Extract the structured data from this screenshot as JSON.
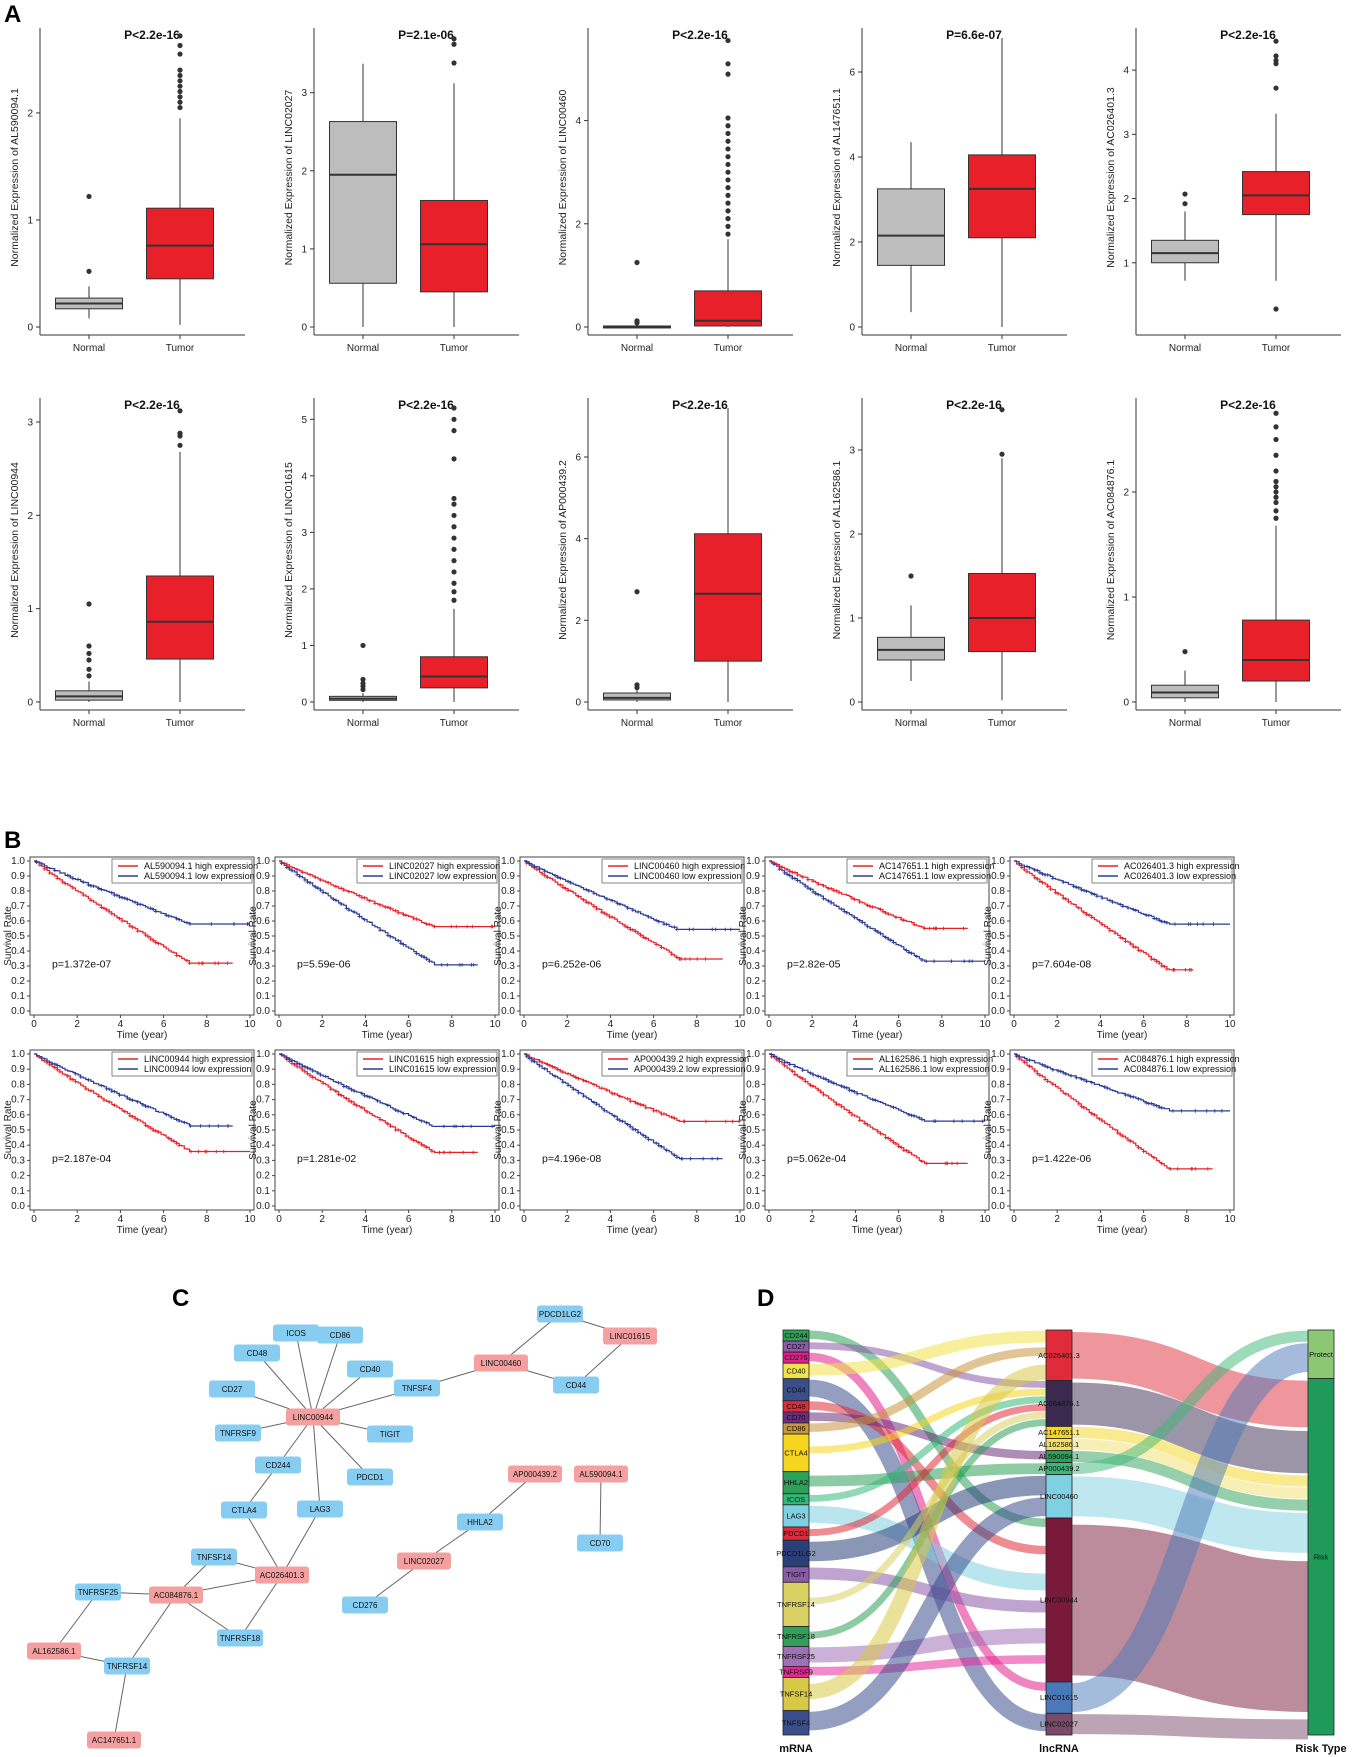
{
  "panels": {
    "A": "A",
    "B": "B",
    "C": "C",
    "D": "D"
  },
  "boxplots": {
    "groups": [
      "Normal",
      "Tumor"
    ],
    "ylabel_prefix": "Normalized Expression of ",
    "colors": {
      "normal": "#bdbdbd",
      "tumor": "#e8202a"
    },
    "plots": [
      {
        "gene": "AL590094.1",
        "p": "P<2.2e-16",
        "ymax": 2.7,
        "ticks": [
          0,
          1,
          2
        ],
        "normal": {
          "min": 0.08,
          "q1": 0.17,
          "med": 0.22,
          "q3": 0.27,
          "max": 0.38,
          "out": [
            0.52,
            1.22
          ]
        },
        "tumor": {
          "min": 0.02,
          "q1": 0.45,
          "med": 0.76,
          "q3": 1.11,
          "max": 1.95,
          "out": [
            2.05,
            2.1,
            2.15,
            2.2,
            2.25,
            2.3,
            2.35,
            2.4,
            2.55,
            2.63,
            2.72
          ]
        }
      },
      {
        "gene": "LINC02027",
        "p": "P=2.1e-06",
        "ymax": 3.7,
        "ticks": [
          0,
          1,
          2,
          3
        ],
        "normal": {
          "min": 0.0,
          "q1": 0.56,
          "med": 1.95,
          "q3": 2.63,
          "max": 3.37,
          "out": []
        },
        "tumor": {
          "min": 0.0,
          "q1": 0.45,
          "med": 1.06,
          "q3": 1.62,
          "max": 3.12,
          "out": [
            3.38,
            3.62,
            3.69
          ]
        }
      },
      {
        "gene": "LINC00460",
        "p": "P<2.2e-16",
        "ymax": 5.6,
        "ticks": [
          0,
          2,
          4
        ],
        "normal": {
          "min": 0.0,
          "q1": 0.0,
          "med": 0.01,
          "q3": 0.02,
          "max": 0.04,
          "out": [
            0.08,
            0.12,
            1.25
          ]
        },
        "tumor": {
          "min": 0.0,
          "q1": 0.02,
          "med": 0.12,
          "q3": 0.7,
          "max": 1.7,
          "out": [
            1.8,
            1.95,
            2.1,
            2.25,
            2.4,
            2.55,
            2.7,
            2.85,
            3.0,
            3.15,
            3.3,
            3.45,
            3.6,
            3.75,
            3.9,
            4.05,
            4.9,
            5.1,
            5.55
          ]
        }
      },
      {
        "gene": "AL147651.1",
        "p": "P=6.6e-07",
        "ymax": 6.8,
        "ticks": [
          0,
          2,
          4,
          6
        ],
        "normal": {
          "min": 0.35,
          "q1": 1.45,
          "med": 2.15,
          "q3": 3.25,
          "max": 4.35,
          "out": []
        },
        "tumor": {
          "min": 0.0,
          "q1": 2.1,
          "med": 3.25,
          "q3": 4.05,
          "max": 6.8,
          "out": []
        }
      },
      {
        "gene": "AC026401.3",
        "p": "P<2.2e-16",
        "ymax": 4.5,
        "ticks": [
          1,
          2,
          3,
          4
        ],
        "normal": {
          "min": 0.72,
          "q1": 1.0,
          "med": 1.15,
          "q3": 1.35,
          "max": 1.8,
          "out": [
            1.92,
            2.07
          ]
        },
        "tumor": {
          "min": 0.72,
          "q1": 1.75,
          "med": 2.05,
          "q3": 2.42,
          "max": 3.32,
          "out": [
            0.28,
            3.72,
            4.1,
            4.15,
            4.22,
            4.45
          ]
        }
      },
      {
        "gene": "LINC00944",
        "p": "P<2.2e-16",
        "ymax": 3.15,
        "ticks": [
          0,
          1,
          2,
          3
        ],
        "normal": {
          "min": 0.0,
          "q1": 0.02,
          "med": 0.06,
          "q3": 0.12,
          "max": 0.22,
          "out": [
            0.28,
            0.35,
            0.45,
            0.52,
            0.6,
            1.05
          ]
        },
        "tumor": {
          "min": 0.0,
          "q1": 0.46,
          "med": 0.86,
          "q3": 1.35,
          "max": 2.68,
          "out": [
            2.75,
            2.85,
            2.88,
            3.12
          ]
        }
      },
      {
        "gene": "LINC01615",
        "p": "P<2.2e-16",
        "ymax": 5.2,
        "ticks": [
          0,
          1,
          2,
          3,
          4,
          5
        ],
        "normal": {
          "min": 0.0,
          "q1": 0.03,
          "med": 0.06,
          "q3": 0.1,
          "max": 0.16,
          "out": [
            0.22,
            0.28,
            0.33,
            0.4,
            1.0
          ]
        },
        "tumor": {
          "min": 0.0,
          "q1": 0.25,
          "med": 0.45,
          "q3": 0.8,
          "max": 1.65,
          "out": [
            1.8,
            1.95,
            2.1,
            2.3,
            2.5,
            2.7,
            2.9,
            3.1,
            3.3,
            3.5,
            3.6,
            4.3,
            4.8,
            5.0,
            5.2
          ]
        }
      },
      {
        "gene": "AP000439.2",
        "p": "P<2.2e-16",
        "ymax": 7.2,
        "ticks": [
          0,
          2,
          4,
          6
        ],
        "normal": {
          "min": 0.0,
          "q1": 0.05,
          "med": 0.1,
          "q3": 0.22,
          "max": 0.3,
          "out": [
            0.35,
            0.42,
            2.7
          ]
        },
        "tumor": {
          "min": 0.0,
          "q1": 1.0,
          "med": 2.65,
          "q3": 4.12,
          "max": 7.2,
          "out": []
        }
      },
      {
        "gene": "AL162586.1",
        "p": "P<2.2e-16",
        "ymax": 3.5,
        "ticks": [
          0,
          1,
          2,
          3
        ],
        "normal": {
          "min": 0.25,
          "q1": 0.5,
          "med": 0.62,
          "q3": 0.77,
          "max": 1.15,
          "out": [
            1.5
          ]
        },
        "tumor": {
          "min": 0.02,
          "q1": 0.6,
          "med": 1.0,
          "q3": 1.53,
          "max": 2.9,
          "out": [
            2.95,
            3.48
          ]
        }
      },
      {
        "gene": "AC084876.1",
        "p": "P<2.2e-16",
        "ymax": 2.8,
        "ticks": [
          0,
          1,
          2
        ],
        "normal": {
          "min": 0.0,
          "q1": 0.04,
          "med": 0.09,
          "q3": 0.16,
          "max": 0.3,
          "out": [
            0.48
          ]
        },
        "tumor": {
          "min": 0.0,
          "q1": 0.2,
          "med": 0.4,
          "q3": 0.78,
          "max": 1.68,
          "out": [
            1.75,
            1.82,
            1.9,
            1.95,
            2.0,
            2.05,
            2.1,
            2.2,
            2.35,
            2.5,
            2.62,
            2.75
          ]
        }
      }
    ]
  },
  "km": {
    "xlabel": "Time (year)",
    "ylabel": "Survival Rate",
    "xticks": [
      0,
      2,
      4,
      6,
      8,
      10
    ],
    "yticks": [
      "0.0",
      "0.1",
      "0.2",
      "0.3",
      "0.4",
      "0.5",
      "0.6",
      "0.7",
      "0.8",
      "0.9",
      "1.0"
    ],
    "high_suffix": " high expression",
    "low_suffix": " low expression",
    "colors": {
      "high": "#e8202a",
      "low": "#2b3a97"
    },
    "plots": [
      {
        "gene": "AL590094.1",
        "p": "p=1.372e-07",
        "high_end": 0.32,
        "high_t": 9.2,
        "low_end": 0.58,
        "low_t": 10.0
      },
      {
        "gene": "LINC02027",
        "p": "p=5.59e-06",
        "high_end": 0.56,
        "high_t": 10.0,
        "low_end": 0.31,
        "low_t": 9.2
      },
      {
        "gene": "LINC00460",
        "p": "p=6.252e-06",
        "high_end": 0.35,
        "high_t": 9.2,
        "low_end": 0.54,
        "low_t": 10.0
      },
      {
        "gene": "AC147651.1",
        "p": "p=2.82e-05",
        "high_end": 0.55,
        "high_t": 9.2,
        "low_end": 0.33,
        "low_t": 10.0
      },
      {
        "gene": "AC026401.3",
        "p": "p=7.604e-08",
        "high_end": 0.27,
        "high_t": 8.3,
        "low_end": 0.58,
        "low_t": 10.0
      },
      {
        "gene": "LINC00944",
        "p": "p=2.187e-04",
        "high_end": 0.36,
        "high_t": 10.0,
        "low_end": 0.53,
        "low_t": 9.2
      },
      {
        "gene": "LINC01615",
        "p": "p=1.281e-02",
        "high_end": 0.35,
        "high_t": 9.2,
        "low_end": 0.52,
        "low_t": 10.0
      },
      {
        "gene": "AP000439.2",
        "p": "p=4.196e-08",
        "high_end": 0.56,
        "high_t": 10.0,
        "low_end": 0.31,
        "low_t": 9.2
      },
      {
        "gene": "AL162586.1",
        "p": "p=5.062e-04",
        "high_end": 0.28,
        "high_t": 9.2,
        "low_end": 0.56,
        "low_t": 10.0
      },
      {
        "gene": "AC084876.1",
        "p": "p=1.422e-06",
        "high_end": 0.24,
        "high_t": 9.2,
        "low_end": 0.63,
        "low_t": 10.0
      }
    ]
  },
  "network": {
    "colors": {
      "mrna": "#87cdf2",
      "lncrna": "#f4a0a0"
    },
    "nodes": [
      {
        "id": "ICOS",
        "type": "mrna"
      },
      {
        "id": "CD86",
        "type": "mrna"
      },
      {
        "id": "CD48",
        "type": "mrna"
      },
      {
        "id": "CD40",
        "type": "mrna"
      },
      {
        "id": "CD27",
        "type": "mrna"
      },
      {
        "id": "LINC00944",
        "type": "lncrna"
      },
      {
        "id": "TNFSF4",
        "type": "mrna"
      },
      {
        "id": "TNFRSF9",
        "type": "mrna"
      },
      {
        "id": "TIGIT",
        "type": "mrna"
      },
      {
        "id": "CD244",
        "type": "mrna"
      },
      {
        "id": "PDCD1",
        "type": "mrna"
      },
      {
        "id": "LAG3",
        "type": "mrna"
      },
      {
        "id": "CTLA4",
        "type": "mrna"
      },
      {
        "id": "TNFSF14",
        "type": "mrna"
      },
      {
        "id": "AC026401.3",
        "type": "lncrna"
      },
      {
        "id": "TNFRSF25",
        "type": "mrna"
      },
      {
        "id": "AC084876.1",
        "type": "lncrna"
      },
      {
        "id": "TNFRSF18",
        "type": "mrna"
      },
      {
        "id": "AL162586.1",
        "type": "lncrna"
      },
      {
        "id": "TNFRSF14",
        "type": "mrna"
      },
      {
        "id": "AC147651.1",
        "type": "lncrna"
      },
      {
        "id": "PDCD1LG2",
        "type": "mrna"
      },
      {
        "id": "LINC01615",
        "type": "lncrna"
      },
      {
        "id": "LINC00460",
        "type": "lncrna"
      },
      {
        "id": "CD44",
        "type": "mrna"
      },
      {
        "id": "AP000439.2",
        "type": "lncrna"
      },
      {
        "id": "AL590094.1",
        "type": "lncrna"
      },
      {
        "id": "HHLA2",
        "type": "mrna"
      },
      {
        "id": "CD70",
        "type": "mrna"
      },
      {
        "id": "LINC02027",
        "type": "lncrna"
      },
      {
        "id": "CD276",
        "type": "mrna"
      }
    ],
    "edges": [
      [
        "LINC00944",
        "ICOS"
      ],
      [
        "LINC00944",
        "CD86"
      ],
      [
        "LINC00944",
        "CD48"
      ],
      [
        "LINC00944",
        "CD40"
      ],
      [
        "LINC00944",
        "CD27"
      ],
      [
        "LINC00944",
        "TNFSF4"
      ],
      [
        "LINC00944",
        "TNFRSF9"
      ],
      [
        "LINC00944",
        "TIGIT"
      ],
      [
        "LINC00944",
        "CD244"
      ],
      [
        "LINC00944",
        "PDCD1"
      ],
      [
        "LINC00944",
        "LAG3"
      ],
      [
        "CD244",
        "CTLA4"
      ],
      [
        "CTLA4",
        "AC026401.3"
      ],
      [
        "TNFSF14",
        "AC026401.3"
      ],
      [
        "TNFSF14",
        "AC084876.1"
      ],
      [
        "AC026401.3",
        "AC084876.1"
      ],
      [
        "AC026401.3",
        "TNFRSF18"
      ],
      [
        "AC084876.1",
        "TNFRSF18"
      ],
      [
        "AC084876.1",
        "TNFRSF25"
      ],
      [
        "AC084876.1",
        "TNFRSF14"
      ],
      [
        "TNFRSF25",
        "AL162586.1"
      ],
      [
        "AL162586.1",
        "TNFRSF14"
      ],
      [
        "TNFRSF14",
        "AC147651.1"
      ],
      [
        "TNFSF4",
        "LINC00460"
      ],
      [
        "LINC00460",
        "PDCD1LG2"
      ],
      [
        "PDCD1LG2",
        "LINC01615"
      ],
      [
        "LINC01615",
        "CD44"
      ],
      [
        "LINC00460",
        "CD44"
      ],
      [
        "AP000439.2",
        "HHLA2"
      ],
      [
        "HHLA2",
        "LINC02027"
      ],
      [
        "LINC02027",
        "CD276"
      ],
      [
        "AL590094.1",
        "CD70"
      ],
      [
        "LAG3",
        "AC026401.3"
      ]
    ]
  },
  "sankey": {
    "axis_labels": [
      "mRNA",
      "lncRNA",
      "Risk Type"
    ],
    "mrna": [
      {
        "id": "CD244",
        "color": "#2ea05a"
      },
      {
        "id": "CD27",
        "color": "#8b5aa8"
      },
      {
        "id": "CD276",
        "color": "#e0208a"
      },
      {
        "id": "CD40",
        "color": "#f0e24a"
      },
      {
        "id": "CD44",
        "color": "#3a4e8c"
      },
      {
        "id": "CD48",
        "color": "#e02c3a"
      },
      {
        "id": "CD70",
        "color": "#6a2d7a"
      },
      {
        "id": "CD86",
        "color": "#c8963c"
      },
      {
        "id": "CTLA4",
        "color": "#f5d51e"
      },
      {
        "id": "HHLA2",
        "color": "#2ea05a"
      },
      {
        "id": "ICOS",
        "color": "#34b87a"
      },
      {
        "id": "LAG3",
        "color": "#7fd0e0"
      },
      {
        "id": "PDCD1",
        "color": "#e02c3a"
      },
      {
        "id": "PDCD1LG2",
        "color": "#2a3f7a"
      },
      {
        "id": "TIGIT",
        "color": "#8b5aa8"
      },
      {
        "id": "TNFRSF14",
        "color": "#d8d060"
      },
      {
        "id": "TNFRSF18",
        "color": "#2ea05a"
      },
      {
        "id": "TNFRSF25",
        "color": "#a070b8"
      },
      {
        "id": "TNFRSF9",
        "color": "#e8289a"
      },
      {
        "id": "TNFSF14",
        "color": "#d8c848"
      },
      {
        "id": "TNFSF4",
        "color": "#3a4e8c"
      }
    ],
    "lncrna": [
      {
        "id": "AC026401.3",
        "color": "#e02c3a"
      },
      {
        "id": "AC084876.1",
        "color": "#3a2a50"
      },
      {
        "id": "AC147651.1",
        "color": "#f5d51e"
      },
      {
        "id": "AL162586.1",
        "color": "#f0e06a"
      },
      {
        "id": "AL590094.1",
        "color": "#2ea05a"
      },
      {
        "id": "AP000439.2",
        "color": "#3cb878"
      },
      {
        "id": "LINC00460",
        "color": "#7fd0e0"
      },
      {
        "id": "LINC00944",
        "color": "#7a1a3a"
      },
      {
        "id": "LINC01615",
        "color": "#4a78b8"
      },
      {
        "id": "LINC02027",
        "color": "#7a4a6a"
      }
    ],
    "risk": [
      {
        "id": "Protect",
        "color": "#8cc874"
      },
      {
        "id": "Risk",
        "color": "#1f9a5a"
      }
    ]
  }
}
